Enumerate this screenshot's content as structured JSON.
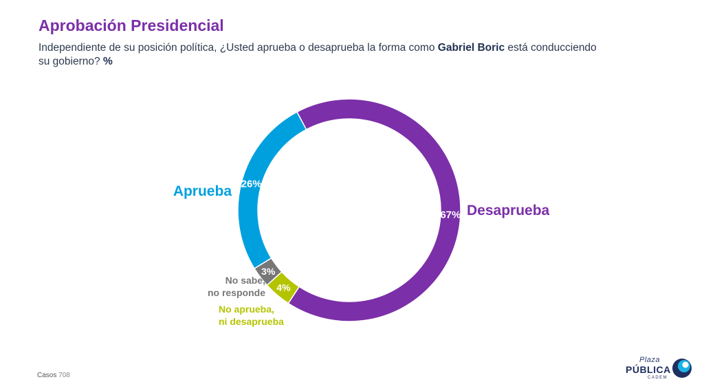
{
  "title": "Aprobación Presidencial",
  "subtitle": {
    "part1": "Independiente de su posición política, ¿Usted aprueba o desaprueba la forma como ",
    "bold_name": "Gabriel Boric",
    "part2": " está conducciendo su gobierno? ",
    "unit": "%"
  },
  "chart_data": {
    "type": "pie",
    "variant": "donut",
    "categories": [
      "Desaprueba",
      "No aprueba,\nni desaprueba",
      "No sabe,\nno responde",
      "Aprueba"
    ],
    "values": [
      67,
      4,
      3,
      26
    ],
    "value_labels": [
      "67%",
      "4%",
      "3%",
      "26%"
    ],
    "colors": [
      "#7b2fa8",
      "#b5c400",
      "#777777",
      "#00a0df"
    ],
    "start_angle_deg": -28,
    "direction": "clockwise"
  },
  "footer": {
    "label": "Casos",
    "value": "708"
  },
  "logo": {
    "line1": "Plaza",
    "line2": "PÚBLICA",
    "line3": "CADEM"
  }
}
